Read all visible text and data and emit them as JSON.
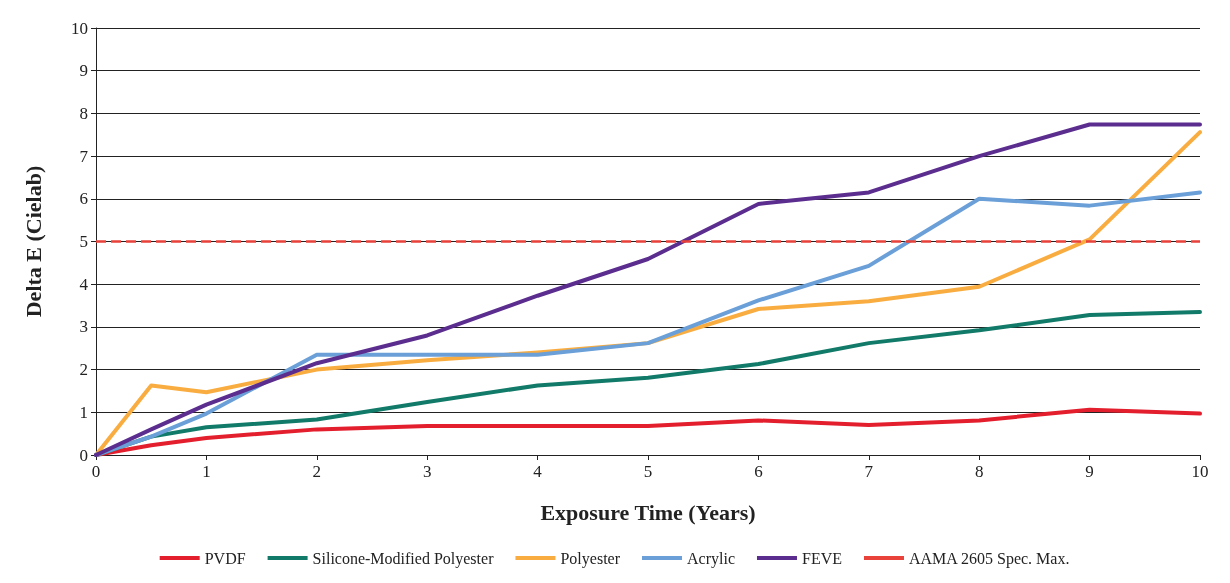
{
  "chart_data": {
    "type": "line",
    "xlabel": "Exposure Time (Years)",
    "ylabel": "Delta E (Cielab)",
    "x": [
      0,
      0.5,
      1,
      2,
      3,
      4,
      5,
      6,
      7,
      8,
      9,
      10
    ],
    "xlim": [
      0,
      10
    ],
    "xticks": [
      0,
      1,
      2,
      3,
      4,
      5,
      6,
      7,
      8,
      9,
      10
    ],
    "ylim": [
      0,
      10
    ],
    "yticks": [
      0,
      1,
      2,
      3,
      4,
      5,
      6,
      7,
      8,
      9,
      10
    ],
    "grid": "y",
    "legend": "bottom",
    "marker": "none",
    "line_style": "solid",
    "series": [
      {
        "name": "PVDF",
        "color": "#e31e2d",
        "values": [
          0,
          0.23,
          0.4,
          0.6,
          0.68,
          0.68,
          0.68,
          0.81,
          0.7,
          0.81,
          1.06,
          0.97
        ]
      },
      {
        "name": "Silicone-Modified Polyester",
        "color": "#127a68",
        "values": [
          0,
          0.43,
          0.65,
          0.83,
          1.24,
          1.63,
          1.81,
          2.13,
          2.62,
          2.92,
          3.28,
          3.35
        ]
      },
      {
        "name": "Polyester",
        "color": "#f9ad40",
        "values": [
          0,
          1.63,
          1.47,
          2.0,
          2.22,
          2.4,
          2.62,
          3.42,
          3.6,
          3.94,
          5.05,
          7.56
        ]
      },
      {
        "name": "Acrylic",
        "color": "#6a9fd8",
        "values": [
          0,
          0.43,
          0.97,
          2.35,
          2.35,
          2.35,
          2.62,
          3.62,
          4.43,
          6.0,
          5.84,
          6.15
        ]
      },
      {
        "name": "FEVE",
        "color": "#5b2d8e",
        "values": [
          0,
          0.6,
          1.18,
          2.15,
          2.8,
          3.73,
          4.59,
          5.88,
          6.15,
          7.0,
          7.74,
          7.74
        ]
      }
    ],
    "ref_lines": [
      {
        "axis": "y",
        "value": 5,
        "label": "AAMA 2605 Spec. Max.",
        "color": "#e8423a",
        "line_style": "dashed"
      }
    ]
  }
}
